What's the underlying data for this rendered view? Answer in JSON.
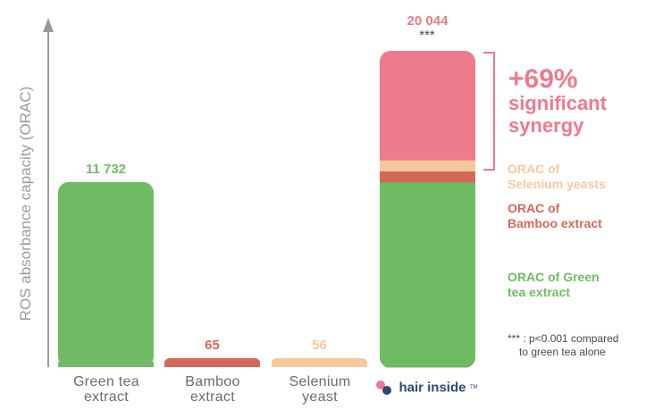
{
  "chart_data": {
    "type": "bar",
    "stacked": true,
    "ylabel": "ROS absorbance capacity (ORAC)",
    "categories": [
      "Green tea\nextract",
      "Bamboo\nextract",
      "Selenium\nyeast",
      ""
    ],
    "series": [
      {
        "name": "ORAC of Green tea extract",
        "color": "#6fbb63",
        "values": [
          11732,
          0,
          0,
          11732
        ]
      },
      {
        "name": "ORAC of Bamboo extract",
        "color": "#d4685a",
        "values": [
          0,
          65,
          0,
          700
        ]
      },
      {
        "name": "ORAC of Selenium yeasts",
        "color": "#f5c99e",
        "values": [
          0,
          0,
          56,
          700
        ]
      },
      {
        "name": "+69% significant synergy",
        "color": "#ee7a8d",
        "values": [
          0,
          0,
          0,
          6912
        ]
      }
    ],
    "bar_labels": [
      "11 732",
      "65",
      "56",
      "20 044"
    ],
    "bar_label_colors": [
      "#6fbb63",
      "#d4685a",
      "#f5c99e",
      "#ee7a8d"
    ],
    "significance": "***",
    "ylim": [
      0,
      20044
    ],
    "grid": false
  },
  "annotations": {
    "synergy_line1": "+69%",
    "synergy_line2": "significant",
    "synergy_line3": "synergy",
    "selenium_line1": "ORAC of",
    "selenium_line2": "Selenium yeasts",
    "bamboo_line1": "ORAC of",
    "bamboo_line2": "Bamboo extract",
    "greentea_line1": "ORAC of Green",
    "greentea_line2": "tea extract",
    "footnote_line1": "*** : p<0.001 compared",
    "footnote_line2": "to green tea alone"
  },
  "logo": {
    "text": "hair inside",
    "tm": "TM",
    "dot_color": "#ee7a8d",
    "text_color": "#2f4a6e"
  },
  "colors": {
    "axis": "#9a9a9a",
    "category_text": "#6b6b6b"
  }
}
